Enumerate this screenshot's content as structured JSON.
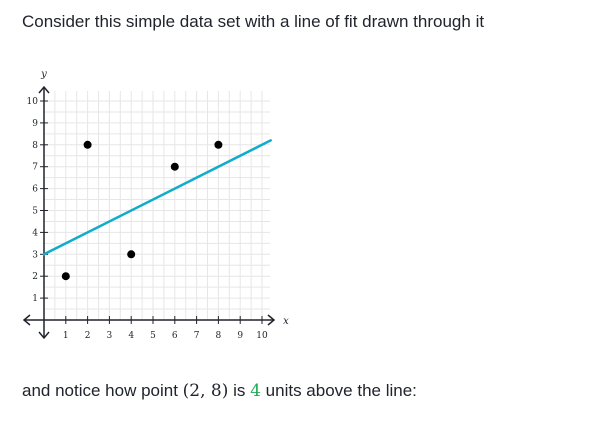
{
  "text": {
    "intro": "Consider this simple data set with a line of fit drawn through it",
    "outro_before": "and notice how point ",
    "outro_point": "(2, 8)",
    "outro_mid": " is ",
    "outro_value": "4",
    "outro_after": " units above the line:"
  },
  "colors": {
    "fit_line": "#11accd",
    "points": "#000000",
    "grid": "#e6e6e6",
    "axis": "#21242c",
    "highlight": "#1fab54"
  },
  "chart_data": {
    "type": "scatter",
    "xlabel": "x",
    "ylabel": "y",
    "xlim": [
      0,
      10
    ],
    "ylim": [
      0,
      10
    ],
    "grid": true,
    "x_ticks": [
      1,
      2,
      3,
      4,
      5,
      6,
      7,
      8,
      9,
      10
    ],
    "y_ticks": [
      1,
      2,
      3,
      4,
      5,
      6,
      7,
      8,
      9,
      10
    ],
    "points": [
      {
        "x": 1,
        "y": 2
      },
      {
        "x": 2,
        "y": 8
      },
      {
        "x": 4,
        "y": 3
      },
      {
        "x": 6,
        "y": 7
      },
      {
        "x": 8,
        "y": 8
      }
    ],
    "fit_line": {
      "slope": 0.5,
      "intercept": 3,
      "x_range": [
        0,
        10.4
      ]
    }
  }
}
